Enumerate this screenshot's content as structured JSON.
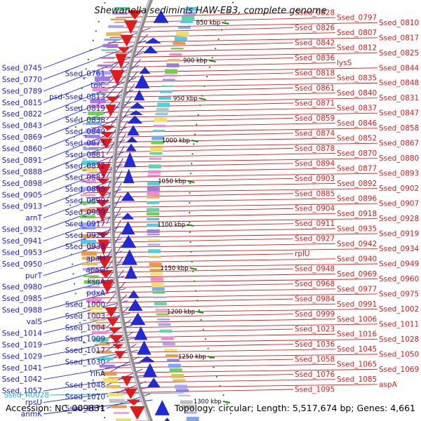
{
  "title": "Shewanella sediminis HAW-EB3, complete genome",
  "footer": {
    "accession": "Accession: NC_009831",
    "summary": "Topology: circular; Length: 5,517,674 bp; Genes: 4,661"
  },
  "colors": {
    "minus_strand": "#1f2ad8",
    "plus_strand": "#e41a1a",
    "rna": "#18b4d8",
    "backbone": "#9a9a9a",
    "tick_marker": "#1a8a1a"
  },
  "ticks": [
    "850 kbp",
    "900 kbp",
    "950 kbp",
    "1000 kbp",
    "1050 kbp",
    "1100 kbp",
    "1150 kbp",
    "1200 kbp",
    "1250 kbp",
    "1300 kbp"
  ],
  "left_labels": [
    "Ssed_0745",
    "Ssed_0761",
    "Ssed_0770",
    "tolC",
    "Ssed_0789",
    "psd-Ssed_0813",
    "Ssed_0815",
    "Ssed_0819",
    "Ssed_0822",
    "Ssed_0838",
    "Ssed_0843",
    "Ssed_0849",
    "Ssed_0869",
    "Ssed_0873",
    "Ssed_0860",
    "Ssed_0881",
    "Ssed_0891",
    "Ssed_0872",
    "Ssed_0888",
    "Ssed_0882",
    "Ssed_0898",
    "Ssed_0889",
    "Ssed_0905",
    "Ssed_0899",
    "Ssed_0913",
    "Ssed_0909",
    "arnT",
    "Ssed_0917",
    "Ssed_0932",
    "Ssed_0926",
    "Ssed_0941",
    "Ssed_0938",
    "Ssed_0953",
    "apaH",
    "Ssed_0950",
    "apaG",
    "purT",
    "ksgA",
    "Ssed_0980",
    "pdxA",
    "Ssed_0985",
    "Ssed_1000",
    "Ssed_0988",
    "Ssed_1003",
    "valS",
    "Ssed_1004",
    "Ssed_1014",
    "Ssed_1009",
    "Ssed_1019",
    "Ssed_1017",
    "Ssed_1029",
    "Ssed_1030",
    "Ssed_1041",
    "rihA",
    "Ssed_1042",
    "Ssed_1048",
    "Ssed_1057",
    "Ssed_1070",
    "rpsU",
    "Ssed_1071",
    "anmK"
  ],
  "rna_labels": [
    "Ssed_R0028"
  ],
  "right_labels": [
    "Ssed_0828",
    "Ssed_0797",
    "Ssed_0810",
    "Ssed_0826",
    "Ssed_0807",
    "Ssed_0817",
    "Ssed_0842",
    "Ssed_0812",
    "Ssed_0825",
    "Ssed_0836",
    "lysS",
    "Ssed_0844",
    "Ssed_0818",
    "Ssed_0835",
    "Ssed_0848",
    "Ssed_0861",
    "Ssed_0840",
    "Ssed_0831",
    "Ssed_0871",
    "Ssed_0837",
    "Ssed_0847",
    "Ssed_0859",
    "Ssed_0846",
    "Ssed_0858",
    "Ssed_0874",
    "Ssed_0852",
    "Ssed_0867",
    "Ssed_0878",
    "Ssed_0870",
    "Ssed_0880",
    "Ssed_0894",
    "Ssed_0877",
    "Ssed_0893",
    "Ssed_0903",
    "Ssed_0892",
    "Ssed_0902",
    "Ssed_0885",
    "Ssed_0896",
    "Ssed_0907",
    "Ssed_0904",
    "Ssed_0918",
    "Ssed_0928",
    "Ssed_0911",
    "Ssed_0935",
    "Ssed_0919",
    "Ssed_0927",
    "Ssed_0942",
    "Ssed_0934",
    "rplU",
    "Ssed_0940",
    "Ssed_0949",
    "Ssed_0948",
    "Ssed_0969",
    "Ssed_0960",
    "Ssed_0968",
    "Ssed_0977",
    "Ssed_0975",
    "Ssed_0984",
    "Ssed_0991",
    "Ssed_1002",
    "Ssed_0999",
    "Ssed_1006",
    "Ssed_1011",
    "Ssed_1023",
    "Ssed_1016",
    "Ssed_1028",
    "Ssed_1036",
    "Ssed_1045",
    "Ssed_1050",
    "Ssed_1058",
    "Ssed_1065",
    "Ssed_1069",
    "Ssed_1076",
    "Ssed_1085",
    "aspA",
    "Ssed_1095"
  ]
}
